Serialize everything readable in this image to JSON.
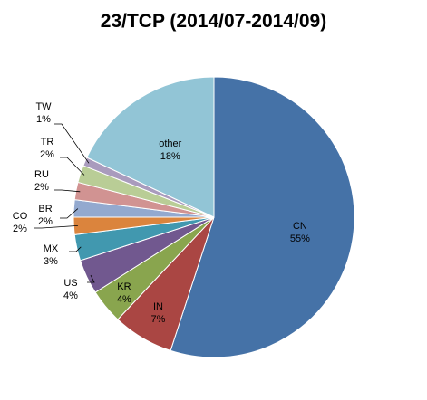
{
  "chart_data": {
    "type": "pie",
    "title": "23/TCP (2014/07-2014/09)",
    "start_direction": "top",
    "direction": "clockwise",
    "slices": [
      {
        "label": "CN",
        "value": 55,
        "display": "55%",
        "color": "#4572A7"
      },
      {
        "label": "IN",
        "value": 7,
        "display": "7%",
        "color": "#AA4643"
      },
      {
        "label": "KR",
        "value": 4,
        "display": "4%",
        "color": "#89A54E"
      },
      {
        "label": "US",
        "value": 4,
        "display": "4%",
        "color": "#71588F"
      },
      {
        "label": "MX",
        "value": 3,
        "display": "3%",
        "color": "#4198AF"
      },
      {
        "label": "CO",
        "value": 2,
        "display": "2%",
        "color": "#DB843D"
      },
      {
        "label": "BR",
        "value": 2,
        "display": "2%",
        "color": "#93A9CF"
      },
      {
        "label": "RU",
        "value": 2,
        "display": "2%",
        "color": "#D19392"
      },
      {
        "label": "TR",
        "value": 2,
        "display": "2%",
        "color": "#B9CD96"
      },
      {
        "label": "TW",
        "value": 1,
        "display": "1%",
        "color": "#A99BBD"
      },
      {
        "label": "other",
        "value": 18,
        "display": "18%",
        "color": "#92C5D6"
      }
    ]
  }
}
